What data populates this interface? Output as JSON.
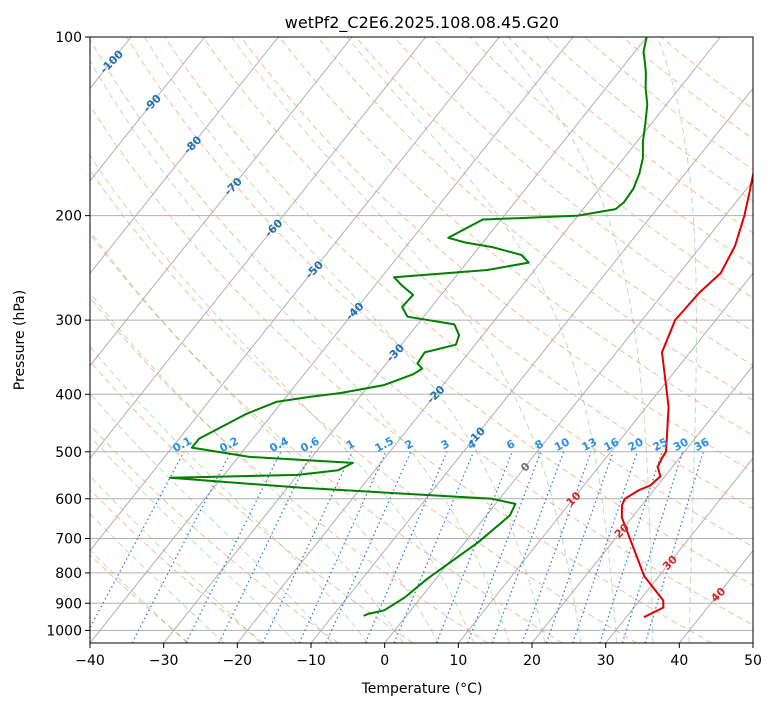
{
  "chart_data": {
    "type": "line",
    "title": "wetPf2_C2E6.2025.108.08.45.G20",
    "xlabel": "Temperature (°C)",
    "ylabel": "Pressure (hPa)",
    "xlim": [
      -40,
      50
    ],
    "ylim": [
      1050,
      100
    ],
    "y_scale": "log",
    "grid": true,
    "x_ticks": [
      "−40",
      "−30",
      "−20",
      "−10",
      "0",
      "10",
      "20",
      "30",
      "40",
      "50"
    ],
    "y_ticks": [
      "100",
      "200",
      "300",
      "400",
      "500",
      "600",
      "700",
      "800",
      "900",
      "1000"
    ],
    "dry_adiabat_labels": [
      "-100",
      "-90",
      "-80",
      "-70",
      "-60",
      "-50",
      "-40",
      "-30",
      "-20",
      "-10",
      "0",
      "10",
      "20",
      "30",
      "40"
    ],
    "mixing_ratio_labels": [
      "0.1",
      "0.2",
      "0.4",
      "0.6",
      "1",
      "1.5",
      "2",
      "3",
      "4",
      "6",
      "8",
      "10",
      "13",
      "16",
      "20",
      "25",
      "30",
      "36"
    ],
    "series": [
      {
        "color": "#e00000",
        "points": [
          [
            32.4,
            950
          ],
          [
            34.0,
            915
          ],
          [
            33.2,
            890
          ],
          [
            28.0,
            810
          ],
          [
            18.6,
            645
          ],
          [
            17.3,
            615
          ],
          [
            17.0,
            600
          ],
          [
            18.0,
            580
          ],
          [
            19.0,
            570
          ],
          [
            19.4,
            550
          ],
          [
            18.0,
            530
          ],
          [
            17.6,
            510
          ],
          [
            17.5,
            500
          ],
          [
            13.0,
            420
          ],
          [
            6.2,
            340
          ],
          [
            4.5,
            300
          ],
          [
            4.8,
            270
          ],
          [
            5.6,
            250
          ],
          [
            4.6,
            225
          ],
          [
            2.6,
            200
          ],
          [
            0.8,
            183
          ],
          [
            -2.0,
            160
          ],
          [
            -3.2,
            145
          ],
          [
            -3.6,
            140
          ],
          [
            -3.9,
            130
          ],
          [
            -3.6,
            120
          ],
          [
            -4.0,
            110
          ],
          [
            -4.2,
            100
          ]
        ]
      },
      {
        "color": "#007f00",
        "points": [
          [
            -5.8,
            945
          ],
          [
            -5.4,
            938
          ],
          [
            -3.6,
            925
          ],
          [
            -2.2,
            880
          ],
          [
            -1.2,
            820
          ],
          [
            1.8,
            710
          ],
          [
            3.2,
            640
          ],
          [
            2.7,
            612
          ],
          [
            -1.0,
            600
          ],
          [
            -28.0,
            575
          ],
          [
            -47.0,
            553
          ],
          [
            -30.0,
            547
          ],
          [
            -25.0,
            537
          ],
          [
            -23.8,
            522
          ],
          [
            -38.5,
            510
          ],
          [
            -47.3,
            492
          ],
          [
            -47.3,
            475
          ],
          [
            -43.6,
            432
          ],
          [
            -40.8,
            412
          ],
          [
            -36.7,
            404
          ],
          [
            -33.0,
            398
          ],
          [
            -28.0,
            386
          ],
          [
            -25.2,
            370
          ],
          [
            -24.6,
            362
          ],
          [
            -25.8,
            355
          ],
          [
            -26.0,
            340
          ],
          [
            -22.6,
            330
          ],
          [
            -23.2,
            318
          ],
          [
            -25.0,
            305
          ],
          [
            -32.2,
            296
          ],
          [
            -34.0,
            285
          ],
          [
            -33.8,
            272
          ],
          [
            -36.4,
            262
          ],
          [
            -38.3,
            254
          ],
          [
            -35.0,
            252
          ],
          [
            -26.4,
            247
          ],
          [
            -21.6,
            240
          ],
          [
            -23.4,
            233
          ],
          [
            -28.2,
            226
          ],
          [
            -32.4,
            222
          ],
          [
            -35.2,
            218
          ],
          [
            -32.5,
            203
          ],
          [
            -28.0,
            202
          ],
          [
            -20.0,
            200
          ],
          [
            -15.6,
            195
          ],
          [
            -15.2,
            190
          ],
          [
            -15.4,
            180
          ],
          [
            -16.2,
            170
          ],
          [
            -17.4,
            160
          ],
          [
            -19.2,
            150
          ],
          [
            -20.8,
            140
          ],
          [
            -22.6,
            130
          ],
          [
            -24.6,
            122
          ],
          [
            -26.2,
            115
          ],
          [
            -27.6,
            110
          ],
          [
            -28.8,
            106
          ],
          [
            -30.0,
            100
          ]
        ]
      }
    ]
  }
}
